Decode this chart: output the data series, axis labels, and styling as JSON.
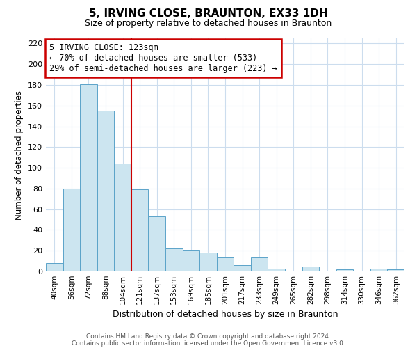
{
  "title": "5, IRVING CLOSE, BRAUNTON, EX33 1DH",
  "subtitle": "Size of property relative to detached houses in Braunton",
  "xlabel": "Distribution of detached houses by size in Braunton",
  "ylabel": "Number of detached properties",
  "bar_labels": [
    "40sqm",
    "56sqm",
    "72sqm",
    "88sqm",
    "104sqm",
    "121sqm",
    "137sqm",
    "153sqm",
    "169sqm",
    "185sqm",
    "201sqm",
    "217sqm",
    "233sqm",
    "249sqm",
    "265sqm",
    "282sqm",
    "298sqm",
    "314sqm",
    "330sqm",
    "346sqm",
    "362sqm"
  ],
  "bar_values": [
    8,
    80,
    181,
    155,
    104,
    79,
    53,
    22,
    21,
    18,
    14,
    6,
    14,
    3,
    0,
    5,
    0,
    2,
    0,
    3,
    2
  ],
  "bar_color": "#cce5f0",
  "bar_edge_color": "#5ba3c9",
  "vline_x": 4.5,
  "vline_color": "#cc0000",
  "ylim": [
    0,
    225
  ],
  "yticks": [
    0,
    20,
    40,
    60,
    80,
    100,
    120,
    140,
    160,
    180,
    200,
    220
  ],
  "annotation_title": "5 IRVING CLOSE: 123sqm",
  "annotation_line1": "← 70% of detached houses are smaller (533)",
  "annotation_line2": "29% of semi-detached houses are larger (223) →",
  "footer1": "Contains HM Land Registry data © Crown copyright and database right 2024.",
  "footer2": "Contains public sector information licensed under the Open Government Licence v3.0.",
  "bg_color": "#ffffff",
  "grid_color": "#ccddee"
}
